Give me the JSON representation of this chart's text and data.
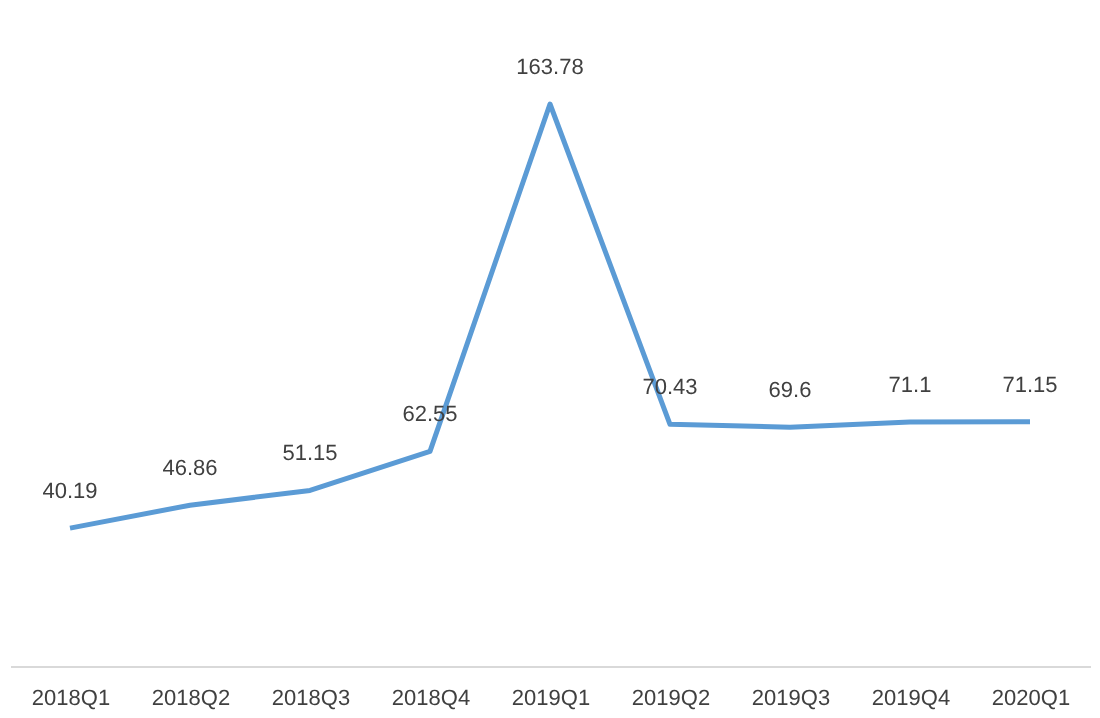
{
  "chart_data": {
    "type": "line",
    "categories": [
      "2018Q1",
      "2018Q2",
      "2018Q3",
      "2018Q4",
      "2019Q1",
      "2019Q2",
      "2019Q3",
      "2019Q4",
      "2020Q1"
    ],
    "series": [
      {
        "color": "#5b9bd5",
        "values": [
          40.19,
          46.86,
          51.15,
          62.55,
          163.78,
          70.43,
          69.6,
          71.1,
          71.15
        ]
      }
    ],
    "data_labels": true,
    "tick_labels": "x",
    "grid": false,
    "marker": "none",
    "line_style": "solid"
  }
}
